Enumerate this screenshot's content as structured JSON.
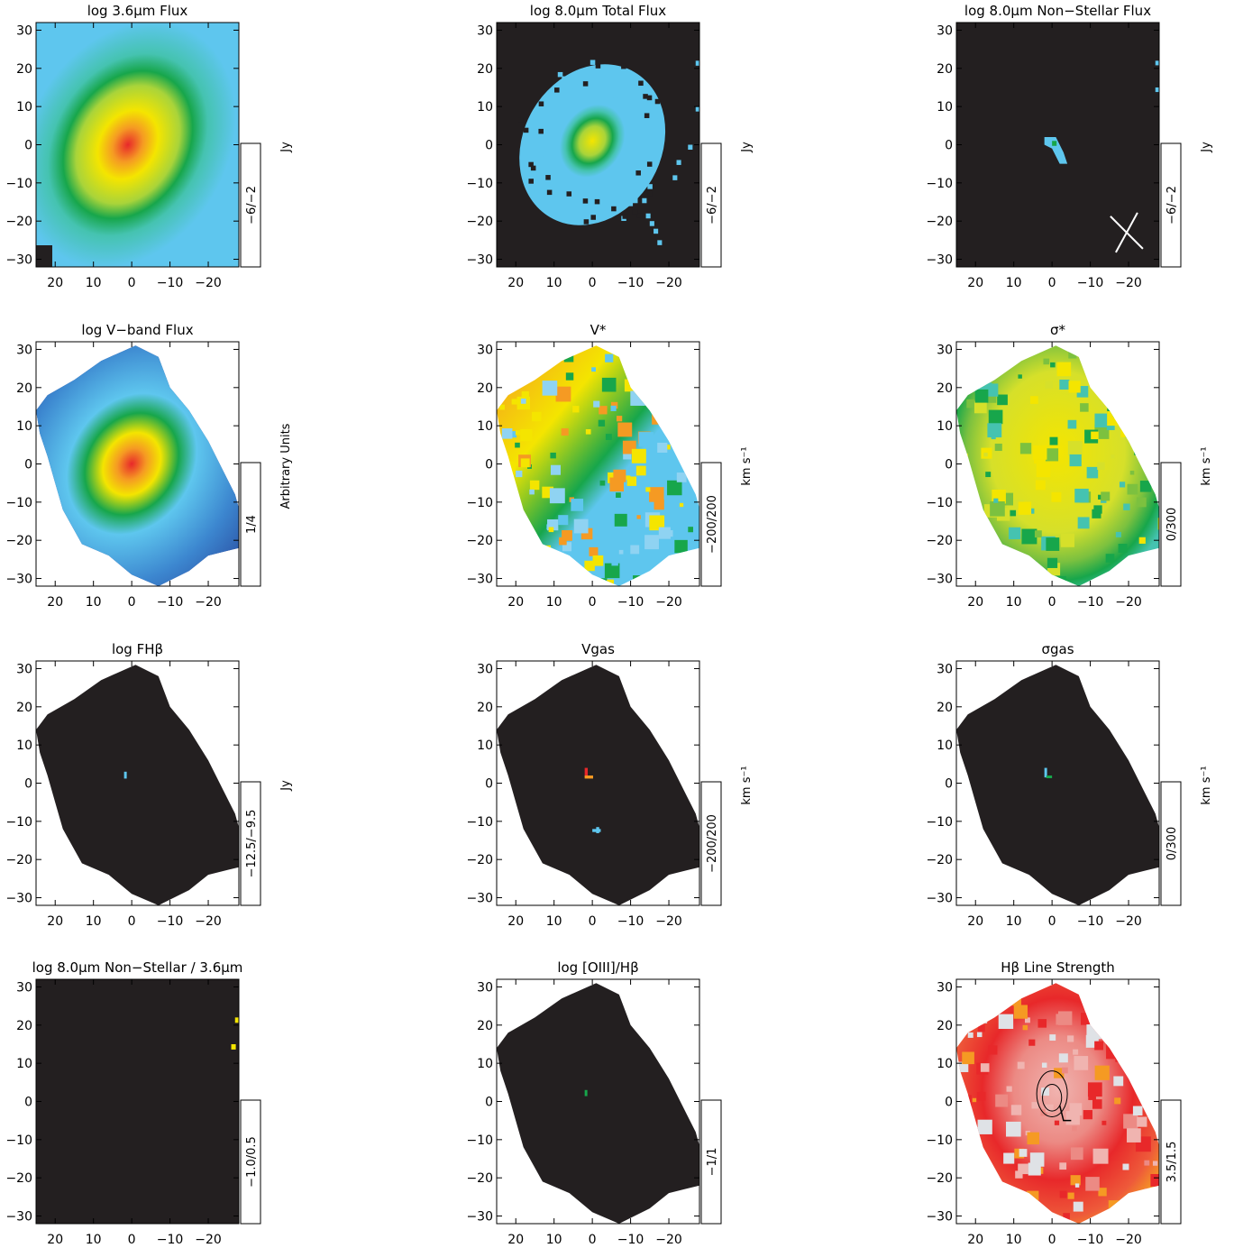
{
  "figure": {
    "x_ticks": [
      "20",
      "10",
      "0",
      "−10",
      "−20"
    ],
    "y_ticks": [
      "30",
      "20",
      "10",
      "0",
      "−10",
      "−20",
      "−30"
    ],
    "colors": {
      "background_black": "#231f20",
      "cyan": "#5ec6ee",
      "green": "#17a64b",
      "yellow": "#f4e500",
      "orange": "#f59a23",
      "red": "#e8282a",
      "navy": "#23378f",
      "pale_red": "#f0b4b0",
      "pale_gray": "#dfe2e6"
    }
  },
  "chart_data": [
    {
      "type": "heatmap",
      "title": "log 3.6μm Flux",
      "colorbar_range": "−6/−2",
      "unit": "Jy",
      "xlim": [
        25,
        -28
      ],
      "ylim": [
        -32,
        32
      ]
    },
    {
      "type": "heatmap",
      "title": "log 8.0μm Total Flux",
      "colorbar_range": "−6/−2",
      "unit": "Jy",
      "xlim": [
        25,
        -28
      ],
      "ylim": [
        -32,
        32
      ]
    },
    {
      "type": "heatmap",
      "title": "log 8.0μm Non−Stellar Flux",
      "colorbar_range": "−6/−2",
      "unit": "Jy",
      "xlim": [
        25,
        -28
      ],
      "ylim": [
        -32,
        32
      ]
    },
    {
      "type": "heatmap",
      "title": "log V−band Flux",
      "colorbar_range": "1/4",
      "unit": "Arbitrary Units",
      "xlim": [
        25,
        -28
      ],
      "ylim": [
        -32,
        32
      ]
    },
    {
      "type": "heatmap",
      "title": "V*",
      "colorbar_range": "−200/200",
      "unit": "km s⁻¹",
      "xlim": [
        25,
        -28
      ],
      "ylim": [
        -32,
        32
      ]
    },
    {
      "type": "heatmap",
      "title": "σ*",
      "colorbar_range": "0/300",
      "unit": "km s⁻¹",
      "xlim": [
        25,
        -28
      ],
      "ylim": [
        -32,
        32
      ]
    },
    {
      "type": "heatmap",
      "title": "log FHβ",
      "colorbar_range": "−12.5/−9.5",
      "unit": "Jy",
      "xlim": [
        25,
        -28
      ],
      "ylim": [
        -32,
        32
      ]
    },
    {
      "type": "heatmap",
      "title": "Vgas",
      "colorbar_range": "−200/200",
      "unit": "km s⁻¹",
      "xlim": [
        25,
        -28
      ],
      "ylim": [
        -32,
        32
      ]
    },
    {
      "type": "heatmap",
      "title": "σgas",
      "colorbar_range": "0/300",
      "unit": "km s⁻¹",
      "xlim": [
        25,
        -28
      ],
      "ylim": [
        -32,
        32
      ]
    },
    {
      "type": "heatmap",
      "title": "log 8.0μm Non−Stellar / 3.6μm",
      "colorbar_range": "−1.0/0.5",
      "unit": "",
      "xlim": [
        25,
        -28
      ],
      "ylim": [
        -32,
        32
      ]
    },
    {
      "type": "heatmap",
      "title": "log [OIII]/Hβ",
      "colorbar_range": "−1/1",
      "unit": "",
      "xlim": [
        25,
        -28
      ],
      "ylim": [
        -32,
        32
      ]
    },
    {
      "type": "heatmap",
      "title": "Hβ Line Strength",
      "colorbar_range": "3.5/1.5",
      "unit": "",
      "xlim": [
        25,
        -28
      ],
      "ylim": [
        -32,
        32
      ]
    }
  ]
}
